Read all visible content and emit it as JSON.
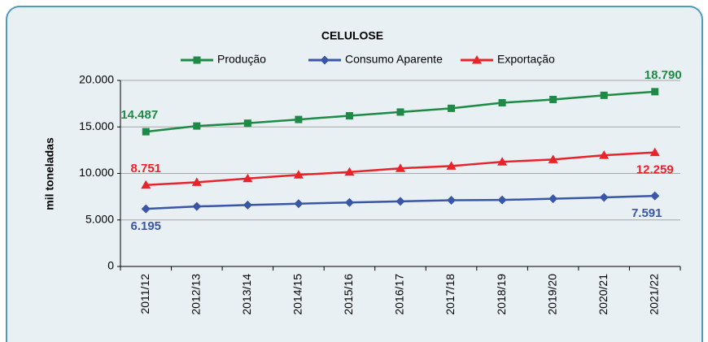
{
  "chart_data": {
    "type": "line",
    "title": "CELULOSE",
    "y_label": "mil toneladas",
    "categories": [
      "2011/12",
      "2012/13",
      "2013/14",
      "2014/15",
      "2015/16",
      "2016/17",
      "2017/18",
      "2018/19",
      "2019/20",
      "2020/21",
      "2021/22"
    ],
    "series": [
      {
        "name": "Produção",
        "color": "#1e8a45",
        "values": [
          14487,
          15100,
          15400,
          15800,
          16200,
          16600,
          17000,
          17600,
          17950,
          18400,
          18790
        ],
        "value_labels": [
          "14.487",
          null,
          null,
          null,
          null,
          null,
          null,
          null,
          null,
          null,
          "18.790"
        ]
      },
      {
        "name": "Consumo Aparente",
        "color": "#3a56a6",
        "values": [
          6195,
          6450,
          6600,
          6750,
          6880,
          7000,
          7120,
          7150,
          7280,
          7420,
          7591
        ],
        "value_labels": [
          "6.195",
          null,
          null,
          null,
          null,
          null,
          null,
          null,
          null,
          null,
          "7.591"
        ]
      },
      {
        "name": "Exportação",
        "color": "#e8232a",
        "values": [
          8751,
          9050,
          9450,
          9850,
          10150,
          10550,
          10800,
          11250,
          11500,
          11950,
          12259
        ],
        "value_labels": [
          "8.751",
          null,
          null,
          null,
          null,
          null,
          null,
          null,
          null,
          null,
          "12.259"
        ]
      }
    ],
    "ylim": [
      0,
      20000
    ],
    "yticks": [
      0,
      {
        "value": 5000,
        "label": "5.000"
      },
      {
        "value": 10000,
        "label": "10.000"
      },
      {
        "value": 15000,
        "label": "15.000"
      },
      {
        "value": 20000,
        "label": "20.000"
      }
    ],
    "grid": true
  }
}
